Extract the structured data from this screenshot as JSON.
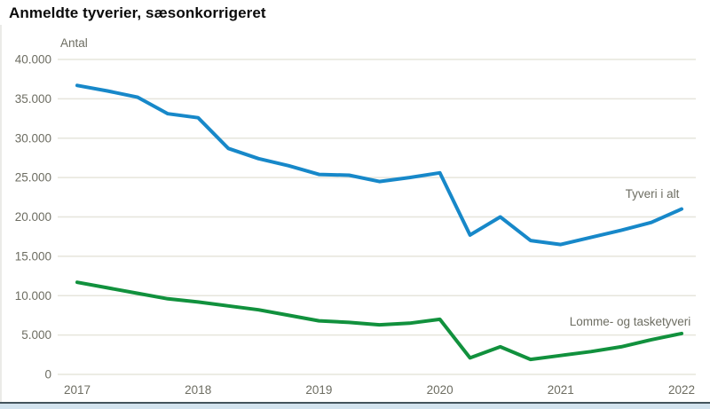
{
  "title": "Anmeldte tyverier, sæsonkorrigeret",
  "chart_data": {
    "type": "line",
    "title": "Anmeldte tyverier, sæsonkorrigeret",
    "unit_label": "Antal",
    "x_frequency": "quarterly",
    "x_range": [
      "2017Q1",
      "2022Q1"
    ],
    "x_tick_labels": [
      "2017",
      "2018",
      "2019",
      "2020",
      "2021",
      "2022"
    ],
    "y_tick_labels": [
      "0",
      "5.000",
      "10.000",
      "15.000",
      "20.000",
      "25.000",
      "30.000",
      "35.000",
      "40.000"
    ],
    "y_tick_values": [
      0,
      5000,
      10000,
      15000,
      20000,
      25000,
      30000,
      35000,
      40000
    ],
    "ylim": [
      0,
      40000
    ],
    "grid": "horizontal",
    "gridline_color": "#e6e5dc",
    "legend_position": "inline-labels",
    "series": [
      {
        "name": "Tyveri i alt",
        "color": "#1788c9",
        "values": [
          36700,
          36000,
          35200,
          33100,
          32600,
          28700,
          27400,
          26500,
          25400,
          25300,
          24500,
          25000,
          25600,
          17700,
          20000,
          17000,
          16500,
          17400,
          18300,
          19300,
          21000
        ]
      },
      {
        "name": "Lomme- og tasketyveri",
        "color": "#11913d",
        "values": [
          11700,
          11000,
          10300,
          9600,
          9200,
          8700,
          8200,
          7500,
          6800,
          6600,
          6300,
          6500,
          7000,
          2100,
          3500,
          1900,
          2400,
          2900,
          3500,
          4400,
          5200
        ]
      }
    ]
  }
}
